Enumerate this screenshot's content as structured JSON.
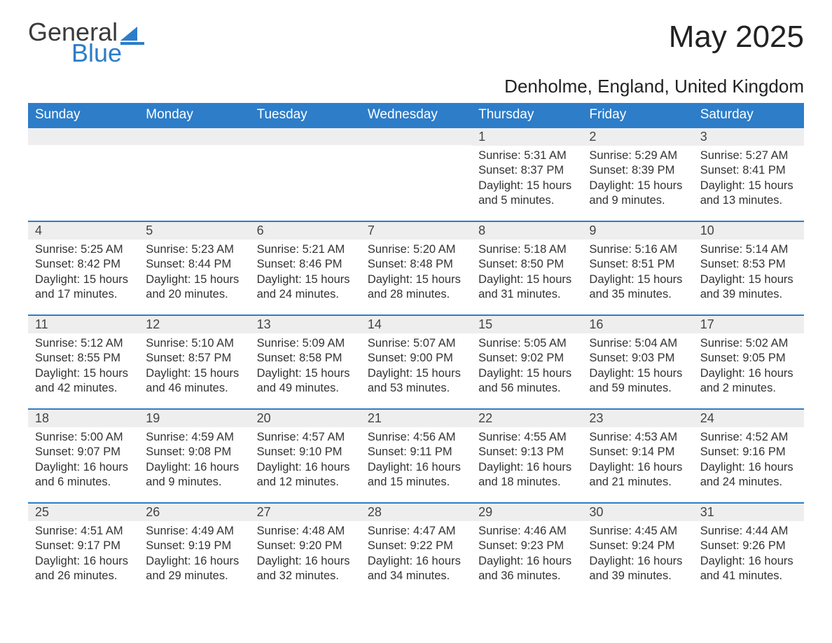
{
  "logo": {
    "word1": "General",
    "word2": "Blue",
    "accent_color": "#2d7dc9"
  },
  "title": "May 2025",
  "location": "Denholme, England, United Kingdom",
  "day_header_bg": "#2d7dc9",
  "day_header_fg": "#ffffff",
  "day_num_bg": "#eeeeee",
  "week_border_color": "#2d7dc9",
  "days_of_week": [
    "Sunday",
    "Monday",
    "Tuesday",
    "Wednesday",
    "Thursday",
    "Friday",
    "Saturday"
  ],
  "weeks": [
    [
      null,
      null,
      null,
      null,
      {
        "n": "1",
        "sunrise": "Sunrise: 5:31 AM",
        "sunset": "Sunset: 8:37 PM",
        "daylight": "Daylight: 15 hours and 5 minutes."
      },
      {
        "n": "2",
        "sunrise": "Sunrise: 5:29 AM",
        "sunset": "Sunset: 8:39 PM",
        "daylight": "Daylight: 15 hours and 9 minutes."
      },
      {
        "n": "3",
        "sunrise": "Sunrise: 5:27 AM",
        "sunset": "Sunset: 8:41 PM",
        "daylight": "Daylight: 15 hours and 13 minutes."
      }
    ],
    [
      {
        "n": "4",
        "sunrise": "Sunrise: 5:25 AM",
        "sunset": "Sunset: 8:42 PM",
        "daylight": "Daylight: 15 hours and 17 minutes."
      },
      {
        "n": "5",
        "sunrise": "Sunrise: 5:23 AM",
        "sunset": "Sunset: 8:44 PM",
        "daylight": "Daylight: 15 hours and 20 minutes."
      },
      {
        "n": "6",
        "sunrise": "Sunrise: 5:21 AM",
        "sunset": "Sunset: 8:46 PM",
        "daylight": "Daylight: 15 hours and 24 minutes."
      },
      {
        "n": "7",
        "sunrise": "Sunrise: 5:20 AM",
        "sunset": "Sunset: 8:48 PM",
        "daylight": "Daylight: 15 hours and 28 minutes."
      },
      {
        "n": "8",
        "sunrise": "Sunrise: 5:18 AM",
        "sunset": "Sunset: 8:50 PM",
        "daylight": "Daylight: 15 hours and 31 minutes."
      },
      {
        "n": "9",
        "sunrise": "Sunrise: 5:16 AM",
        "sunset": "Sunset: 8:51 PM",
        "daylight": "Daylight: 15 hours and 35 minutes."
      },
      {
        "n": "10",
        "sunrise": "Sunrise: 5:14 AM",
        "sunset": "Sunset: 8:53 PM",
        "daylight": "Daylight: 15 hours and 39 minutes."
      }
    ],
    [
      {
        "n": "11",
        "sunrise": "Sunrise: 5:12 AM",
        "sunset": "Sunset: 8:55 PM",
        "daylight": "Daylight: 15 hours and 42 minutes."
      },
      {
        "n": "12",
        "sunrise": "Sunrise: 5:10 AM",
        "sunset": "Sunset: 8:57 PM",
        "daylight": "Daylight: 15 hours and 46 minutes."
      },
      {
        "n": "13",
        "sunrise": "Sunrise: 5:09 AM",
        "sunset": "Sunset: 8:58 PM",
        "daylight": "Daylight: 15 hours and 49 minutes."
      },
      {
        "n": "14",
        "sunrise": "Sunrise: 5:07 AM",
        "sunset": "Sunset: 9:00 PM",
        "daylight": "Daylight: 15 hours and 53 minutes."
      },
      {
        "n": "15",
        "sunrise": "Sunrise: 5:05 AM",
        "sunset": "Sunset: 9:02 PM",
        "daylight": "Daylight: 15 hours and 56 minutes."
      },
      {
        "n": "16",
        "sunrise": "Sunrise: 5:04 AM",
        "sunset": "Sunset: 9:03 PM",
        "daylight": "Daylight: 15 hours and 59 minutes."
      },
      {
        "n": "17",
        "sunrise": "Sunrise: 5:02 AM",
        "sunset": "Sunset: 9:05 PM",
        "daylight": "Daylight: 16 hours and 2 minutes."
      }
    ],
    [
      {
        "n": "18",
        "sunrise": "Sunrise: 5:00 AM",
        "sunset": "Sunset: 9:07 PM",
        "daylight": "Daylight: 16 hours and 6 minutes."
      },
      {
        "n": "19",
        "sunrise": "Sunrise: 4:59 AM",
        "sunset": "Sunset: 9:08 PM",
        "daylight": "Daylight: 16 hours and 9 minutes."
      },
      {
        "n": "20",
        "sunrise": "Sunrise: 4:57 AM",
        "sunset": "Sunset: 9:10 PM",
        "daylight": "Daylight: 16 hours and 12 minutes."
      },
      {
        "n": "21",
        "sunrise": "Sunrise: 4:56 AM",
        "sunset": "Sunset: 9:11 PM",
        "daylight": "Daylight: 16 hours and 15 minutes."
      },
      {
        "n": "22",
        "sunrise": "Sunrise: 4:55 AM",
        "sunset": "Sunset: 9:13 PM",
        "daylight": "Daylight: 16 hours and 18 minutes."
      },
      {
        "n": "23",
        "sunrise": "Sunrise: 4:53 AM",
        "sunset": "Sunset: 9:14 PM",
        "daylight": "Daylight: 16 hours and 21 minutes."
      },
      {
        "n": "24",
        "sunrise": "Sunrise: 4:52 AM",
        "sunset": "Sunset: 9:16 PM",
        "daylight": "Daylight: 16 hours and 24 minutes."
      }
    ],
    [
      {
        "n": "25",
        "sunrise": "Sunrise: 4:51 AM",
        "sunset": "Sunset: 9:17 PM",
        "daylight": "Daylight: 16 hours and 26 minutes."
      },
      {
        "n": "26",
        "sunrise": "Sunrise: 4:49 AM",
        "sunset": "Sunset: 9:19 PM",
        "daylight": "Daylight: 16 hours and 29 minutes."
      },
      {
        "n": "27",
        "sunrise": "Sunrise: 4:48 AM",
        "sunset": "Sunset: 9:20 PM",
        "daylight": "Daylight: 16 hours and 32 minutes."
      },
      {
        "n": "28",
        "sunrise": "Sunrise: 4:47 AM",
        "sunset": "Sunset: 9:22 PM",
        "daylight": "Daylight: 16 hours and 34 minutes."
      },
      {
        "n": "29",
        "sunrise": "Sunrise: 4:46 AM",
        "sunset": "Sunset: 9:23 PM",
        "daylight": "Daylight: 16 hours and 36 minutes."
      },
      {
        "n": "30",
        "sunrise": "Sunrise: 4:45 AM",
        "sunset": "Sunset: 9:24 PM",
        "daylight": "Daylight: 16 hours and 39 minutes."
      },
      {
        "n": "31",
        "sunrise": "Sunrise: 4:44 AM",
        "sunset": "Sunset: 9:26 PM",
        "daylight": "Daylight: 16 hours and 41 minutes."
      }
    ]
  ]
}
